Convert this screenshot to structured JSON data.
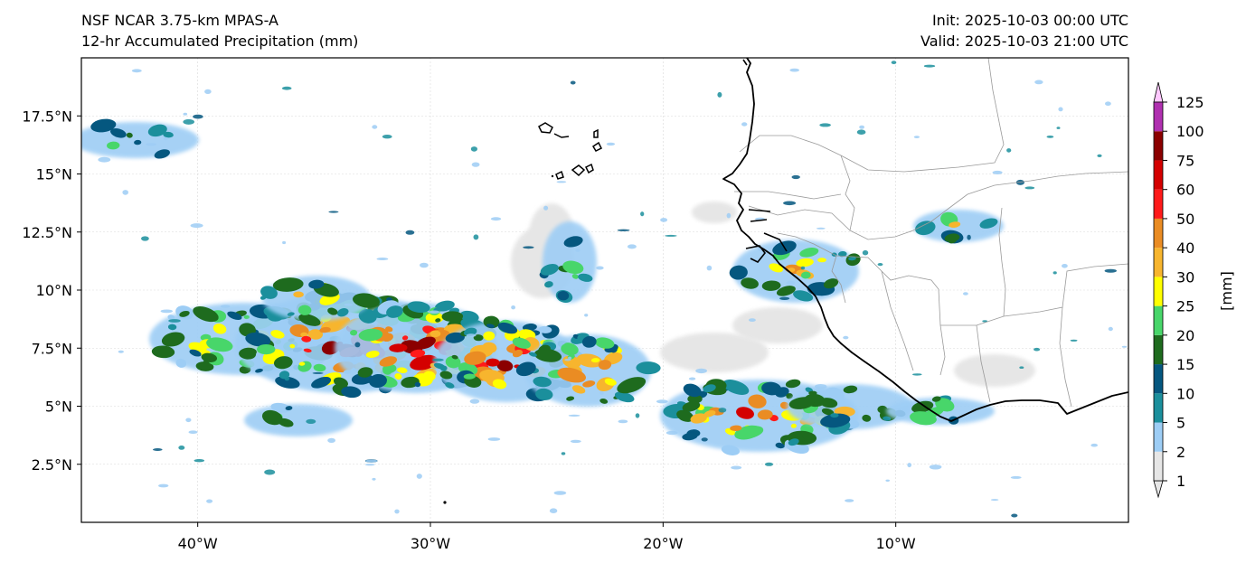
{
  "header": {
    "model": "NSF NCAR 3.75-km MPAS-A",
    "field": "12-hr Accumulated Precipitation (mm)",
    "init": "Init: 2025-10-03 00:00 UTC",
    "valid": "Valid: 2025-10-03 21:00 UTC"
  },
  "map": {
    "lon_range": [
      -45,
      0
    ],
    "lat_range": [
      0,
      20
    ],
    "lon_ticks": [
      {
        "value": -40,
        "label": "40°W"
      },
      {
        "value": -30,
        "label": "30°W"
      },
      {
        "value": -20,
        "label": "20°W"
      },
      {
        "value": -10,
        "label": "10°W"
      }
    ],
    "lat_ticks": [
      {
        "value": 2.5,
        "label": "2.5°N"
      },
      {
        "value": 5,
        "label": "5°N"
      },
      {
        "value": 7.5,
        "label": "7.5°N"
      },
      {
        "value": 10,
        "label": "10°N"
      },
      {
        "value": 12.5,
        "label": "12.5°N"
      },
      {
        "value": 15,
        "label": "15°N"
      },
      {
        "value": 17.5,
        "label": "17.5°N"
      }
    ],
    "gridlines": true,
    "coastline_color": "#000000",
    "border_color": "#9a9a9a"
  },
  "colorbar": {
    "unit_label": "[mm]",
    "levels": [
      "1",
      "2",
      "5",
      "10",
      "15",
      "20",
      "25",
      "30",
      "40",
      "50",
      "60",
      "75",
      "100",
      "125"
    ],
    "colors": [
      "#e6e6e6",
      "#9dcdf5",
      "#1b8f9c",
      "#05577f",
      "#1e6b1e",
      "#48d66a",
      "#ffff00",
      "#f7b52e",
      "#ea8c23",
      "#ff1a1a",
      "#d40000",
      "#8b0000",
      "#b030b0",
      "#ffc8ff"
    ],
    "extend": "both"
  }
}
